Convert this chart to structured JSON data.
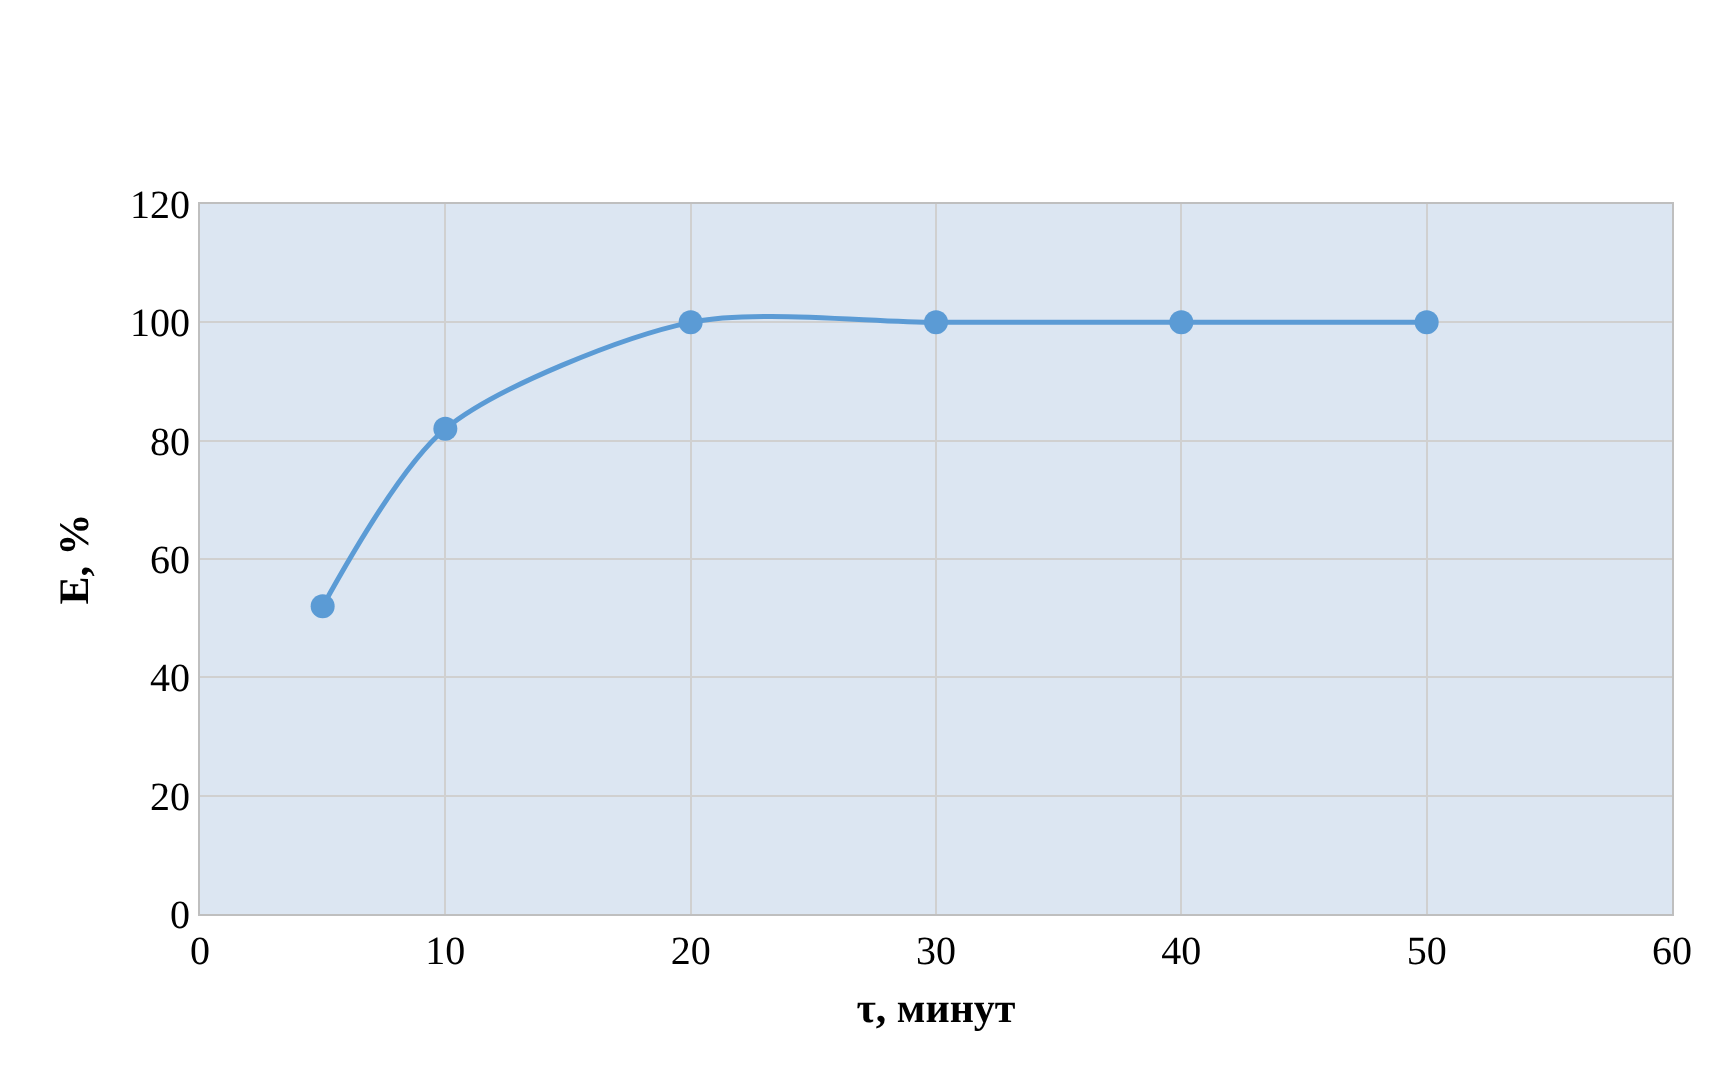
{
  "chart_data": {
    "type": "line",
    "xlabel": "τ, минут",
    "ylabel": "E, %",
    "x": [
      5,
      10,
      20,
      30,
      40,
      50
    ],
    "series": [
      {
        "color": "#5b9bd5",
        "values": [
          52,
          82,
          100,
          100,
          100,
          100
        ]
      }
    ],
    "xlim": [
      0,
      60
    ],
    "xticks": [
      0,
      10,
      20,
      30,
      40,
      50,
      60
    ],
    "ylim": [
      0,
      120
    ],
    "yticks": [
      0,
      20,
      40,
      60,
      80,
      100,
      120
    ],
    "grid": true,
    "marker": "circle",
    "line_style": "solid"
  }
}
